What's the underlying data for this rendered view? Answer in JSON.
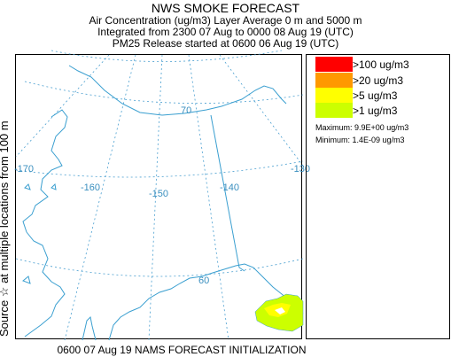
{
  "header": {
    "title": "NWS SMOKE FORECAST",
    "line2": "Air Concentration (ug/m3) Layer Average    0 m and  5000 m",
    "line3": "Integrated from 2300 07 Aug to 0000 08 Aug 19 (UTC)",
    "line4": "PM25 Release started at 0600 06 Aug 19 (UTC)"
  },
  "side_label": "Source ☆  at multiple locations     from   100 m",
  "legend": {
    "items": [
      {
        "label": ">100 ug/m3",
        "color": "#ff0000"
      },
      {
        "label": ">20 ug/m3",
        "color": "#ff9900"
      },
      {
        "label": ">5 ug/m3",
        "color": "#ffff00"
      },
      {
        "label": ">1 ug/m3",
        "color": "#ccff00"
      }
    ],
    "maximum": "Maximum: 9.9E+00 ug/m3",
    "minimum": "Minimum: 1.4E-09 ug/m3"
  },
  "map": {
    "graticule_labels": {
      "lat_70": "70",
      "lat_60": "60",
      "lon_170": "-170",
      "lon_160": "-160",
      "lon_150": "-150",
      "lon_140": "-140",
      "lon_130": "-130"
    },
    "colors": {
      "graticule": "#4a9fd0",
      "coastline": "#3a9fd0",
      "border": "#3a9fd0",
      "smoke_light": "#ccff00",
      "smoke_mid": "#ffff00"
    }
  },
  "footer": "0600 07 Aug 19 NAMS FORECAST INITIALIZATION"
}
